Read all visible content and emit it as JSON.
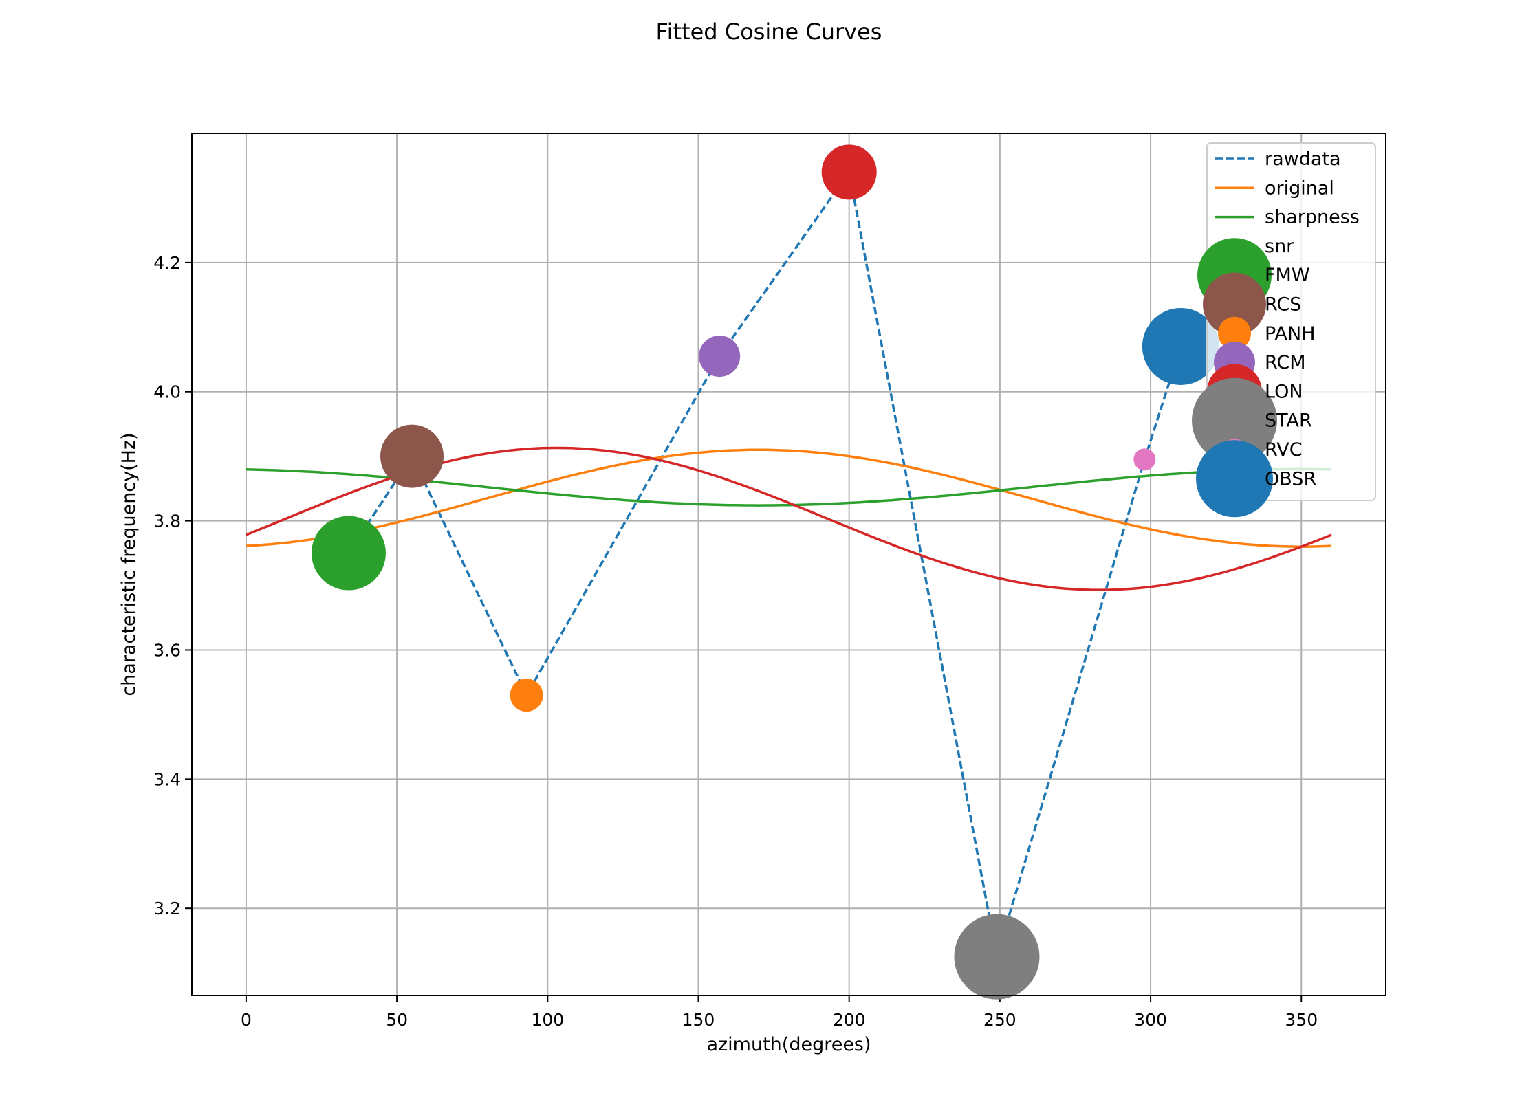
{
  "chart_data": {
    "type": "line",
    "title": "Fitted Cosine Curves",
    "xlabel": "azimuth(degrees)",
    "ylabel": "characteristic frequency(Hz)",
    "xlim": [
      -18,
      378
    ],
    "ylim": [
      3.065,
      4.4
    ],
    "x_ticks": [
      0,
      50,
      100,
      150,
      200,
      250,
      300,
      350
    ],
    "y_ticks": [
      3.2,
      3.4,
      3.6,
      3.8,
      4.0,
      4.2
    ],
    "grid": true,
    "legend_position": "top-right",
    "rawdata": {
      "name": "rawdata",
      "color": "#1f77b4",
      "style": "dashed",
      "x": [
        34,
        55,
        93,
        157,
        200,
        249,
        298,
        310
      ],
      "y": [
        3.75,
        3.9,
        3.53,
        4.055,
        4.34,
        3.125,
        3.895,
        4.07
      ]
    },
    "fitted_curves": [
      {
        "name": "original",
        "color": "#ff7f0e",
        "mean": 3.835,
        "amplitude": 0.075,
        "phase_deg": 170
      },
      {
        "name": "sharpness",
        "color": "#2ca02c",
        "mean": 3.852,
        "amplitude": 0.028,
        "phase_deg": 350
      },
      {
        "name": "snr",
        "color": "#d62728",
        "mean": 3.803,
        "amplitude": 0.11,
        "phase_deg": 103
      }
    ],
    "stations": [
      {
        "name": "FMW",
        "x": 34,
        "y": 3.75,
        "color": "#2ca02c",
        "size": 54
      },
      {
        "name": "RCS",
        "x": 55,
        "y": 3.9,
        "color": "#8c564b",
        "size": 46
      },
      {
        "name": "PANH",
        "x": 93,
        "y": 3.53,
        "color": "#ff7f0e",
        "size": 24
      },
      {
        "name": "RCM",
        "x": 157,
        "y": 4.055,
        "color": "#9467bd",
        "size": 30
      },
      {
        "name": "LON",
        "x": 200,
        "y": 4.34,
        "color": "#d62728",
        "size": 40
      },
      {
        "name": "STAR",
        "x": 249,
        "y": 3.125,
        "color": "#7f7f7f",
        "size": 62
      },
      {
        "name": "RVC",
        "x": 298,
        "y": 3.895,
        "color": "#e377c2",
        "size": 16
      },
      {
        "name": "OBSR",
        "x": 310,
        "y": 4.07,
        "color": "#1f77b4",
        "size": 56
      }
    ]
  }
}
